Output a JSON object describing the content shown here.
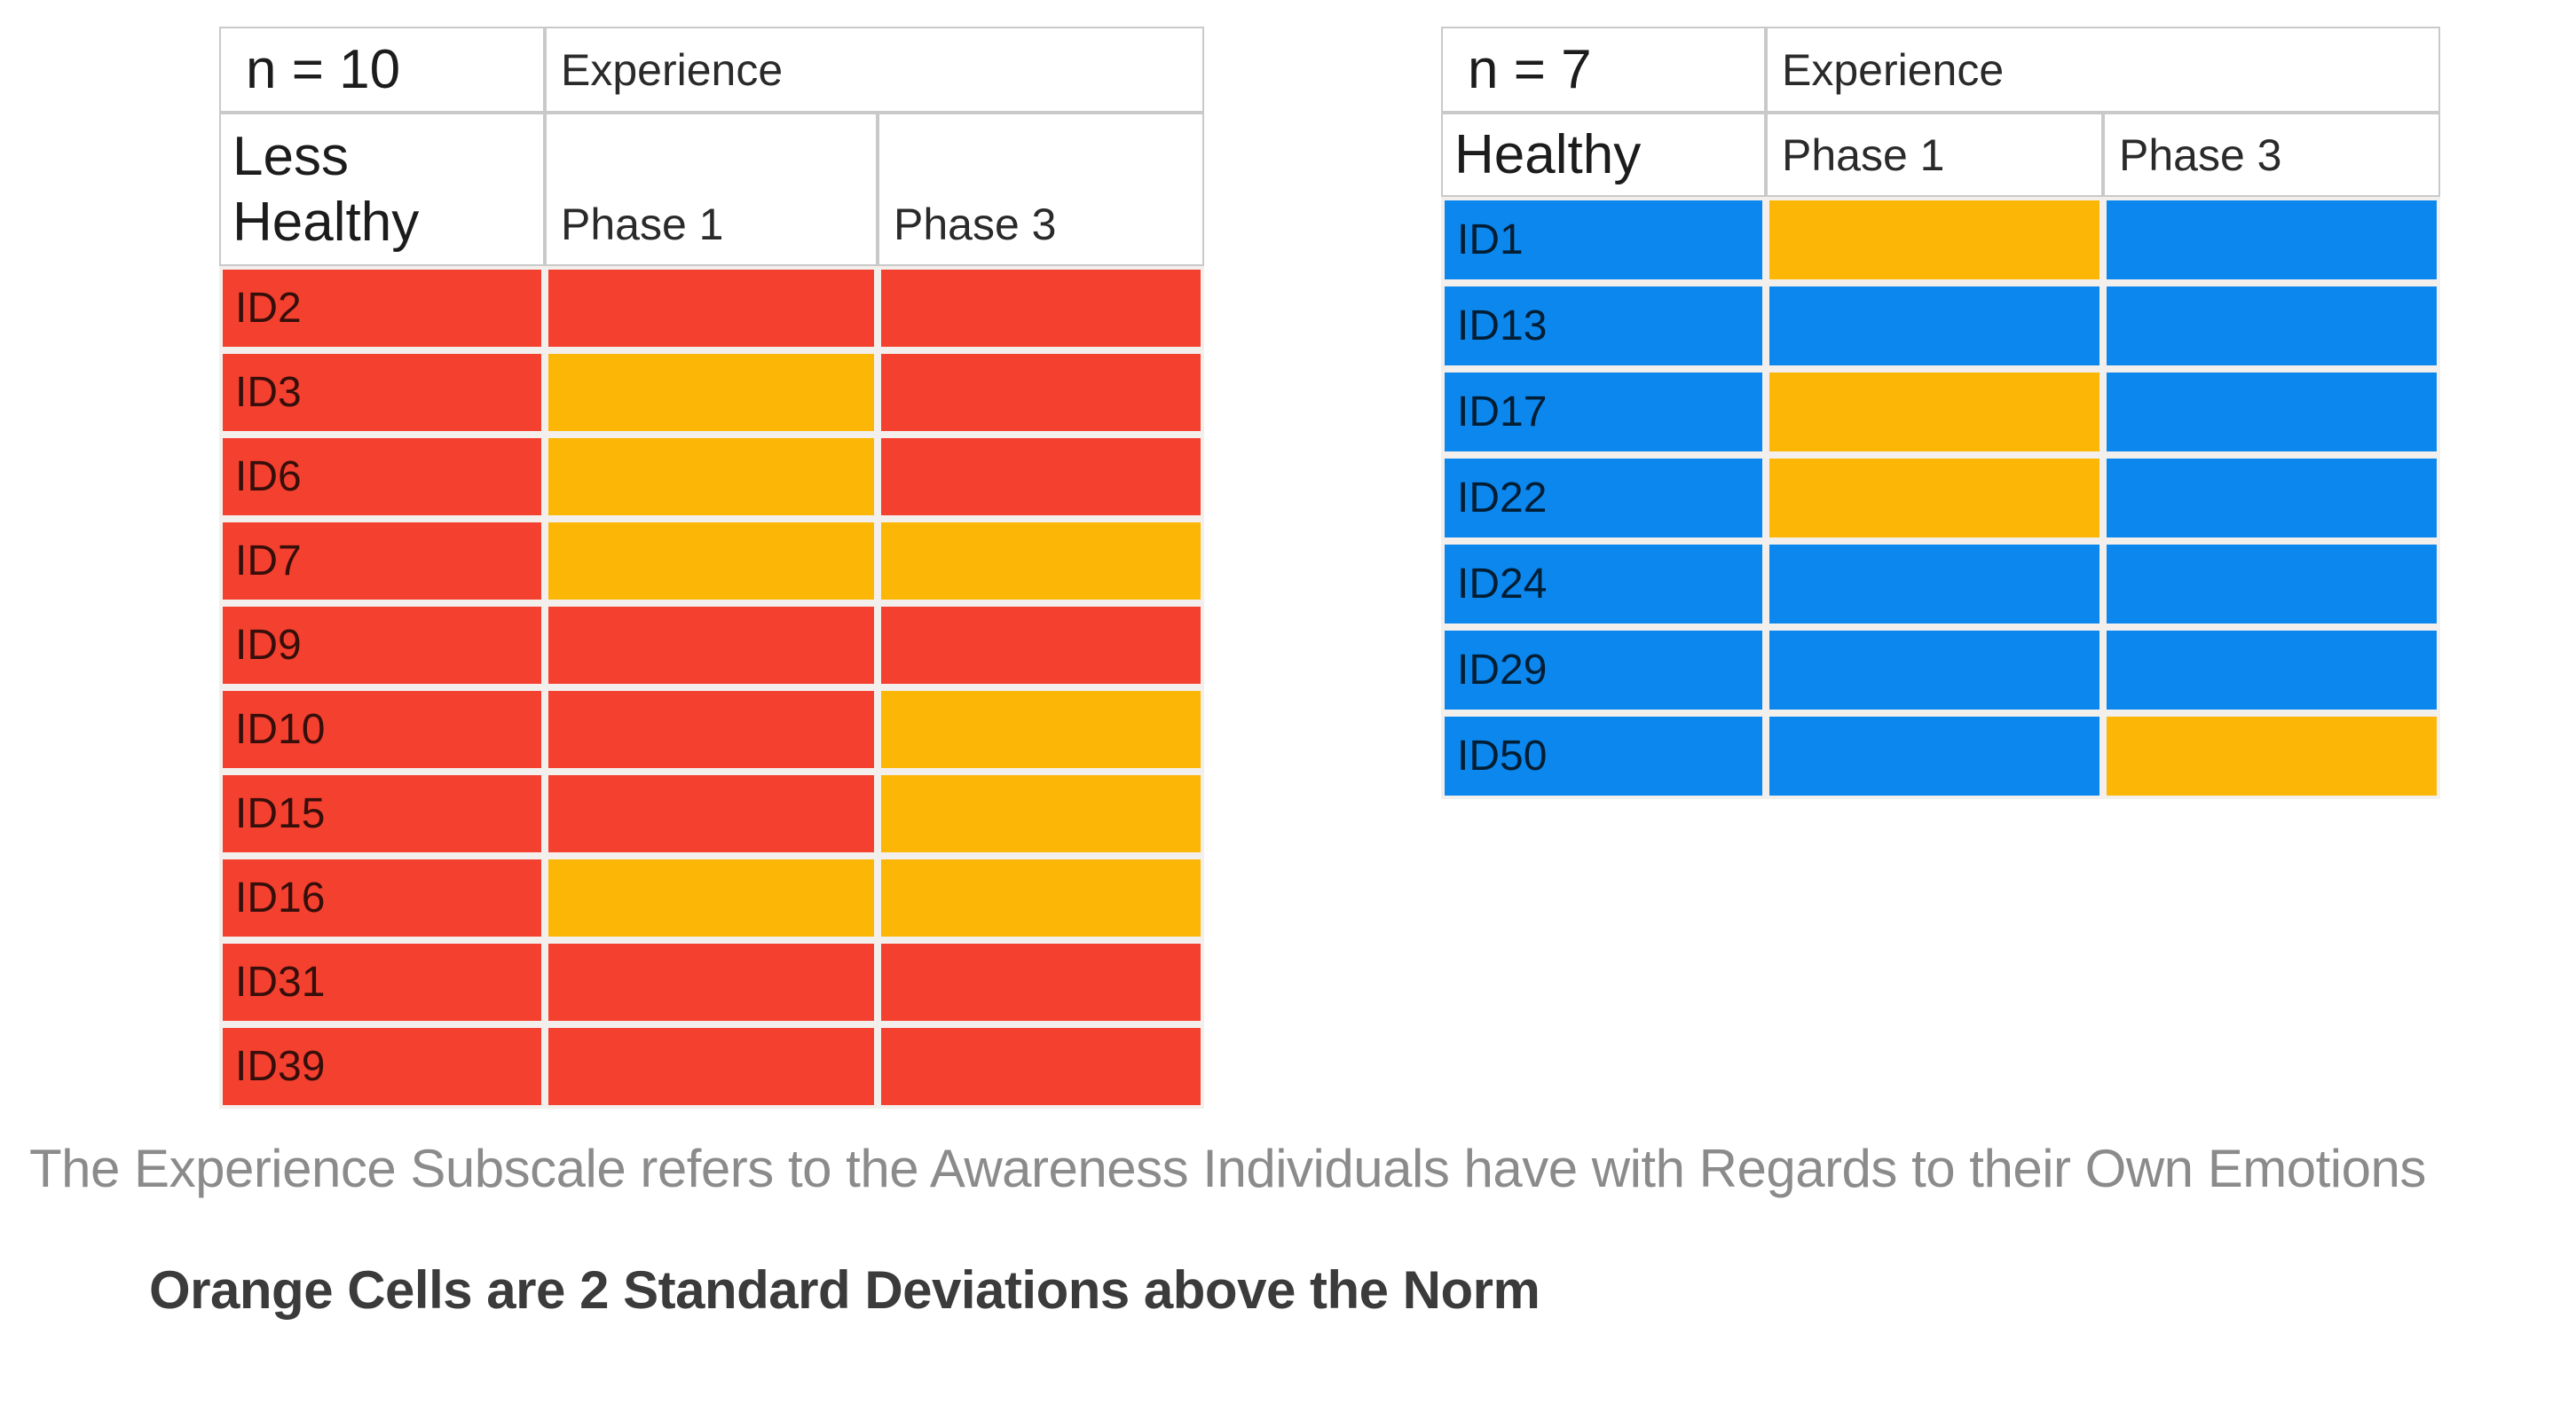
{
  "colors": {
    "red": "#F4402F",
    "orange": "#FCB605",
    "blue": "#0B87EE",
    "caption_gray": "#8B8B8B",
    "note_dark": "#3B3B3B"
  },
  "caption": {
    "subscale_description": "The Experience Subscale refers to the Awareness Individuals have with Regards to their Own Emotions",
    "orange_note": "Orange Cells are 2 Standard Deviations above the Norm"
  },
  "chart_data": [
    {
      "type": "table",
      "n_label": "n = 10",
      "subscale_label": "Experience",
      "group_label": "Less Healthy",
      "phase_columns": [
        "Phase 1",
        "Phase 3"
      ],
      "base_color": "red",
      "highlight_color": "orange",
      "highlight_meaning": "2 standard deviations above the norm",
      "rows": [
        {
          "id": "ID2",
          "id_cell": "red",
          "phase1": "red",
          "phase3": "red"
        },
        {
          "id": "ID3",
          "id_cell": "red",
          "phase1": "orange",
          "phase3": "red"
        },
        {
          "id": "ID6",
          "id_cell": "red",
          "phase1": "orange",
          "phase3": "red"
        },
        {
          "id": "ID7",
          "id_cell": "red",
          "phase1": "orange",
          "phase3": "orange"
        },
        {
          "id": "ID9",
          "id_cell": "red",
          "phase1": "red",
          "phase3": "red"
        },
        {
          "id": "ID10",
          "id_cell": "red",
          "phase1": "red",
          "phase3": "orange"
        },
        {
          "id": "ID15",
          "id_cell": "red",
          "phase1": "red",
          "phase3": "orange"
        },
        {
          "id": "ID16",
          "id_cell": "red",
          "phase1": "orange",
          "phase3": "orange"
        },
        {
          "id": "ID31",
          "id_cell": "red",
          "phase1": "red",
          "phase3": "red"
        },
        {
          "id": "ID39",
          "id_cell": "red",
          "phase1": "red",
          "phase3": "red"
        }
      ]
    },
    {
      "type": "table",
      "n_label": "n = 7",
      "subscale_label": "Experience",
      "group_label": "Healthy",
      "phase_columns": [
        "Phase 1",
        "Phase 3"
      ],
      "base_color": "blue",
      "highlight_color": "orange",
      "highlight_meaning": "2 standard deviations above the norm",
      "rows": [
        {
          "id": "ID1",
          "id_cell": "blue",
          "phase1": "orange",
          "phase3": "blue"
        },
        {
          "id": "ID13",
          "id_cell": "blue",
          "phase1": "blue",
          "phase3": "blue"
        },
        {
          "id": "ID17",
          "id_cell": "blue",
          "phase1": "orange",
          "phase3": "blue"
        },
        {
          "id": "ID22",
          "id_cell": "blue",
          "phase1": "orange",
          "phase3": "blue"
        },
        {
          "id": "ID24",
          "id_cell": "blue",
          "phase1": "blue",
          "phase3": "blue"
        },
        {
          "id": "ID29",
          "id_cell": "blue",
          "phase1": "blue",
          "phase3": "blue"
        },
        {
          "id": "ID50",
          "id_cell": "blue",
          "phase1": "blue",
          "phase3": "orange"
        }
      ]
    }
  ]
}
